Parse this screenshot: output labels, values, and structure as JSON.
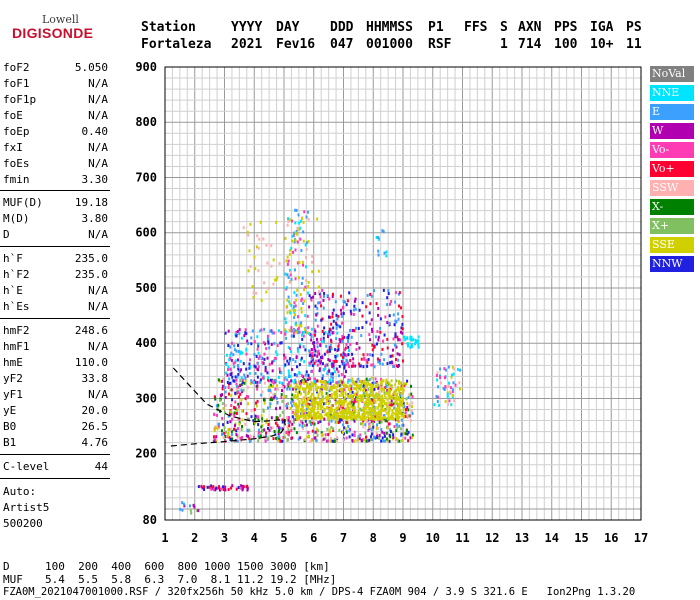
{
  "logo": {
    "top": "Lowell",
    "bottom": "DIGISONDE"
  },
  "header": {
    "labels": [
      "Station",
      "YYYY",
      "DAY",
      "DDD",
      "HHMMSS",
      "P1",
      "FFS",
      "S",
      "AXN",
      "PPS",
      "IGA",
      "PS"
    ],
    "values": [
      "Fortaleza",
      "2021",
      "Fev16",
      "047",
      "001000",
      "RSF",
      "",
      "1",
      "714",
      "100",
      "10+",
      "11"
    ]
  },
  "params_group1": [
    {
      "name": "foF2",
      "value": "5.050"
    },
    {
      "name": "foF1",
      "value": "N/A"
    },
    {
      "name": "foF1p",
      "value": "N/A"
    },
    {
      "name": "foE",
      "value": "N/A"
    },
    {
      "name": "foEp",
      "value": "0.40"
    },
    {
      "name": "fxI",
      "value": "N/A"
    },
    {
      "name": "foEs",
      "value": "N/A"
    },
    {
      "name": "fmin",
      "value": "3.30"
    }
  ],
  "params_group2": [
    {
      "name": "MUF(D)",
      "value": "19.18"
    },
    {
      "name": "M(D)",
      "value": "3.80"
    },
    {
      "name": "D",
      "value": "N/A"
    }
  ],
  "params_group3": [
    {
      "name": "h`F",
      "value": "235.0"
    },
    {
      "name": "h`F2",
      "value": "235.0"
    },
    {
      "name": "h`E",
      "value": "N/A"
    },
    {
      "name": "h`Es",
      "value": "N/A"
    }
  ],
  "params_group4": [
    {
      "name": "hmF2",
      "value": "248.6"
    },
    {
      "name": "hmF1",
      "value": "N/A"
    },
    {
      "name": "hmE",
      "value": "110.0"
    },
    {
      "name": "yF2",
      "value": "33.8"
    },
    {
      "name": "yF1",
      "value": "N/A"
    },
    {
      "name": "yE",
      "value": "20.0"
    },
    {
      "name": "B0",
      "value": "26.5"
    },
    {
      "name": "B1",
      "value": "4.76"
    }
  ],
  "clevel": {
    "name": "C-level",
    "value": "44"
  },
  "auto": [
    "Auto:",
    "Artist5",
    "500200"
  ],
  "footer": {
    "d_label": "D",
    "d_values": "100  200  400  600  800 1000 1500 3000 [km]",
    "muf_label": "MUF",
    "muf_values": "5.4  5.5  5.8  6.3  7.0  8.1 11.2 19.2 [MHz]",
    "file_line": "FZA0M_2021047001000.RSF / 320fx256h 50 kHz 5.0 km / DPS-4 FZA0M 904 / 3.9 S 321.6 E   Ion2Png 1.3.20"
  },
  "legend": [
    {
      "label": "NoVal",
      "color": "#808080"
    },
    {
      "label": "NNE",
      "color": "#00e5ff"
    },
    {
      "label": "E",
      "color": "#3ca0ff"
    },
    {
      "label": "W",
      "color": "#b000b0"
    },
    {
      "label": "Vo-",
      "color": "#ff3cb4"
    },
    {
      "label": "Vo+",
      "color": "#ff0030"
    },
    {
      "label": "SSW",
      "color": "#ffb0b0"
    },
    {
      "label": "X-",
      "color": "#008000"
    },
    {
      "label": "X+",
      "color": "#80c060"
    },
    {
      "label": "SSE",
      "color": "#d0d000"
    },
    {
      "label": "NNW",
      "color": "#2020e0"
    }
  ],
  "chart_data": {
    "type": "scatter",
    "xlim": [
      1,
      17
    ],
    "ylim": [
      80,
      900
    ],
    "x_ticks": [
      "1",
      "2",
      "3",
      "4",
      "5",
      "6",
      "7",
      "8",
      "9",
      "10",
      "11",
      "12",
      "13",
      "14",
      "15",
      "16",
      "17"
    ],
    "y_ticks": [
      "80",
      "200",
      "300",
      "400",
      "500",
      "600",
      "700",
      "800",
      "900"
    ],
    "grid": true,
    "trace_curve": [
      [
        1.2,
        214
      ],
      [
        2,
        218
      ],
      [
        3,
        222
      ],
      [
        4,
        227
      ],
      [
        4.6,
        232
      ],
      [
        4.9,
        238
      ],
      [
        5.05,
        250
      ],
      [
        5.0,
        262
      ],
      [
        4.6,
        260
      ],
      [
        4.0,
        258
      ],
      [
        3.2,
        268
      ],
      [
        2.4,
        290
      ],
      [
        1.8,
        325
      ],
      [
        1.2,
        360
      ]
    ],
    "echo_clusters": [
      {
        "x": [
          2.6,
          9.3
        ],
        "y": [
          225,
          340
        ],
        "count": 900,
        "series": [
          "E",
          "W",
          "Vo-",
          "Vo+",
          "SSE",
          "NNW",
          "SSW",
          "X-",
          "X+"
        ]
      },
      {
        "x": [
          5.3,
          9.0
        ],
        "y": [
          265,
          335
        ],
        "count": 700,
        "series": [
          "SSE"
        ]
      },
      {
        "x": [
          3.0,
          7.2
        ],
        "y": [
          330,
          430
        ],
        "count": 350,
        "series": [
          "E",
          "NNE",
          "W",
          "NNW",
          "Vo-"
        ]
      },
      {
        "x": [
          5.8,
          9.0
        ],
        "y": [
          360,
          500
        ],
        "count": 300,
        "series": [
          "NNW",
          "W",
          "Vo-",
          "E",
          "Vo+"
        ]
      },
      {
        "x": [
          5.0,
          5.8
        ],
        "y": [
          420,
          650
        ],
        "count": 120,
        "series": [
          "E",
          "SSE",
          "NNE",
          "Vo-"
        ]
      },
      {
        "x": [
          3.6,
          6.2
        ],
        "y": [
          480,
          640
        ],
        "count": 60,
        "series": [
          "SSE",
          "SSW"
        ]
      },
      {
        "x": [
          9.0,
          9.6
        ],
        "y": [
          395,
          415
        ],
        "count": 25,
        "series": [
          "NNE"
        ]
      },
      {
        "x": [
          10.0,
          10.9
        ],
        "y": [
          290,
          360
        ],
        "count": 50,
        "series": [
          "SSE",
          "SSW",
          "E",
          "Vo-",
          "NNE"
        ]
      },
      {
        "x": [
          8.0,
          8.6
        ],
        "y": [
          560,
          610
        ],
        "count": 10,
        "series": [
          "NNE",
          "E"
        ]
      },
      {
        "x": [
          2.1,
          3.8
        ],
        "y": [
          137,
          145
        ],
        "count": 40,
        "series": [
          "Vo-",
          "W",
          "NNW",
          "Vo+"
        ]
      },
      {
        "x": [
          1.4,
          2.1
        ],
        "y": [
          95,
          120
        ],
        "count": 12,
        "series": [
          "E",
          "X+",
          "W"
        ]
      }
    ]
  }
}
